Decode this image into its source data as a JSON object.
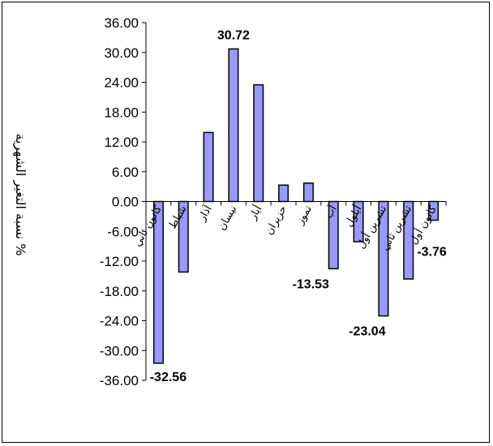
{
  "chart_data": {
    "type": "bar",
    "ylabel": "نسبة التغير الشهرية %",
    "ylim": [
      -36,
      36
    ],
    "yticks": [
      "36.00",
      "30.00",
      "24.00",
      "18.00",
      "12.00",
      "6.00",
      "0.00",
      "-6.00",
      "-12.00",
      "-18.00",
      "-24.00",
      "-30.00",
      "-36.00"
    ],
    "categories": [
      "كانون ثاني",
      "شباط",
      "آذار",
      "نيسان",
      "أيار",
      "حزيران",
      "تموز",
      "آب",
      "أيلول",
      "تشرين أول",
      "تشرين ثاني",
      "كانون أول"
    ],
    "values": [
      -32.56,
      -14.2,
      13.9,
      30.72,
      23.5,
      3.3,
      3.7,
      -13.53,
      -8.1,
      -23.04,
      -15.6,
      -3.76
    ],
    "data_labels": [
      {
        "index": 0,
        "text": "-32.56"
      },
      {
        "index": 3,
        "text": "30.72"
      },
      {
        "index": 7,
        "text": "-13.53"
      },
      {
        "index": 9,
        "text": "-23.04"
      },
      {
        "index": 11,
        "text": "-3.76"
      }
    ],
    "bar_color": "#9999ff",
    "grid": false,
    "legend": "none"
  }
}
